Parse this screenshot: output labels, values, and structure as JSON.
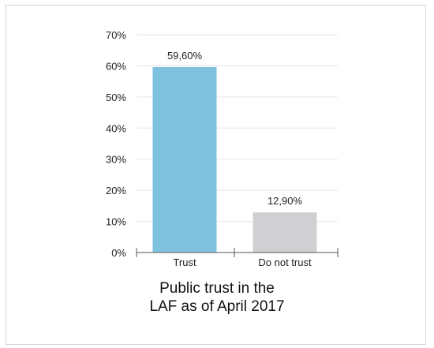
{
  "chart_data": {
    "type": "bar",
    "categories": [
      "Trust",
      "Do not trust"
    ],
    "values": [
      59.6,
      12.9
    ],
    "data_labels": [
      "59,60%",
      "12,90%"
    ],
    "colors": [
      "#7ec2e0",
      "#d0d0d2"
    ],
    "yticks": [
      {
        "value": 0,
        "label": "0%"
      },
      {
        "value": 10,
        "label": "10%"
      },
      {
        "value": 20,
        "label": "20%"
      },
      {
        "value": 30,
        "label": "30%"
      },
      {
        "value": 40,
        "label": "40%"
      },
      {
        "value": 50,
        "label": "50%"
      },
      {
        "value": 60,
        "label": "60%"
      },
      {
        "value": 70,
        "label": "70%"
      }
    ],
    "ylim": [
      0,
      70
    ],
    "grid": true,
    "grid_color": "#e6e6e6",
    "caption_lines": [
      "Public trust in the",
      "LAF as of  April 2017"
    ]
  }
}
